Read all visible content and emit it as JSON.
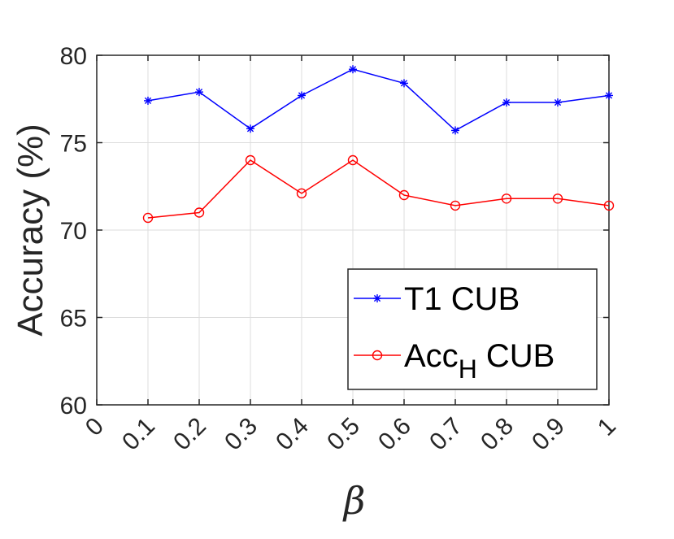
{
  "chart_data": {
    "type": "line",
    "title": "",
    "xlabel": "β",
    "ylabel": "Accuracy (%)",
    "xlim": [
      0,
      1
    ],
    "ylim": [
      60,
      80
    ],
    "grid": true,
    "legend_position": "bottom-right",
    "x_ticks": [
      "0",
      "0.1",
      "0.2",
      "0.3",
      "0.4",
      "0.5",
      "0.6",
      "0.7",
      "0.8",
      "0.9",
      "1"
    ],
    "y_ticks": [
      "60",
      "65",
      "70",
      "75",
      "80"
    ],
    "x": [
      0.1,
      0.2,
      0.3,
      0.4,
      0.5,
      0.6,
      0.7,
      0.8,
      0.9,
      1.0
    ],
    "series": [
      {
        "name": "T1 CUB",
        "color": "#0000ff",
        "marker": "asterisk",
        "values": [
          77.4,
          77.9,
          75.8,
          77.7,
          79.2,
          78.4,
          75.7,
          77.3,
          77.3,
          77.7
        ]
      },
      {
        "name_main": "Acc",
        "name_sub": "H",
        "name_suffix": " CUB",
        "color": "#ff0000",
        "marker": "circle",
        "values": [
          70.7,
          71.0,
          74.0,
          72.1,
          74.0,
          72.0,
          71.4,
          71.8,
          71.8,
          71.4
        ]
      }
    ]
  }
}
